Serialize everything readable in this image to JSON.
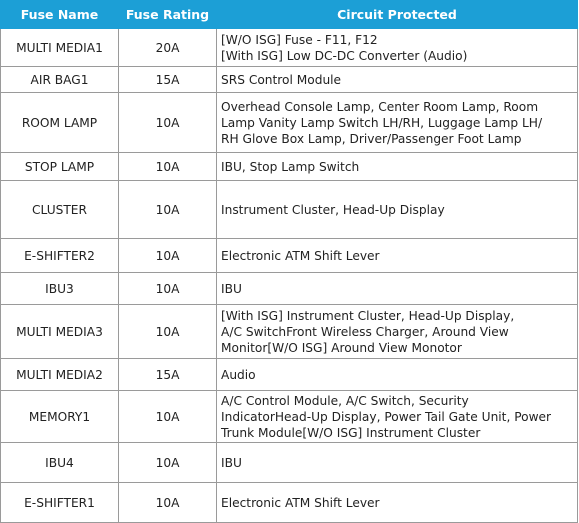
{
  "table": {
    "header": [
      "Fuse Name",
      "Fuse Rating",
      "Circuit Protected"
    ],
    "rows": [
      [
        "MULTI MEDIA1",
        "20A",
        [
          "[W/O ISG] Fuse - F11, F12",
          "[With ISG] Low DC-DC Converter (Audio)"
        ]
      ],
      [
        "AIR BAG1",
        "15A",
        [
          "SRS Control Module"
        ]
      ],
      [
        "ROOM LAMP",
        "10A",
        [
          "Overhead Console Lamp, Center Room Lamp, Room",
          "Lamp Vanity Lamp Switch LH/RH, Luggage Lamp LH/",
          "RH Glove Box Lamp, Driver/Passenger Foot Lamp"
        ]
      ],
      [
        "STOP LAMP",
        "10A",
        [
          "IBU, Stop Lamp Switch"
        ]
      ],
      [
        "CLUSTER",
        "10A",
        [
          "Instrument Cluster, Head-Up Display"
        ]
      ],
      [
        "E-SHIFTER2",
        "10A",
        [
          "Electronic ATM Shift Lever"
        ]
      ],
      [
        "IBU3",
        "10A",
        [
          "IBU"
        ]
      ],
      [
        "MULTI MEDIA3",
        "10A",
        [
          "[With ISG] Instrument Cluster, Head-Up Display,",
          "A/C SwitchFront Wireless Charger, Around View",
          "Monitor[W/O ISG] Around View Monotor"
        ]
      ],
      [
        "MULTI MEDIA2",
        "15A",
        [
          "Audio"
        ]
      ],
      [
        "MEMORY1",
        "10A",
        [
          "A/C Control Module, A/C Switch, Security",
          "IndicatorHead-Up Display, Power Tail Gate Unit, Power",
          "Trunk Module[W/O ISG] Instrument Cluster"
        ]
      ],
      [
        "IBU4",
        "10A",
        [
          "IBU"
        ]
      ],
      [
        "E-SHIFTER1",
        "10A",
        [
          "Electronic ATM Shift Lever"
        ]
      ]
    ]
  }
}
